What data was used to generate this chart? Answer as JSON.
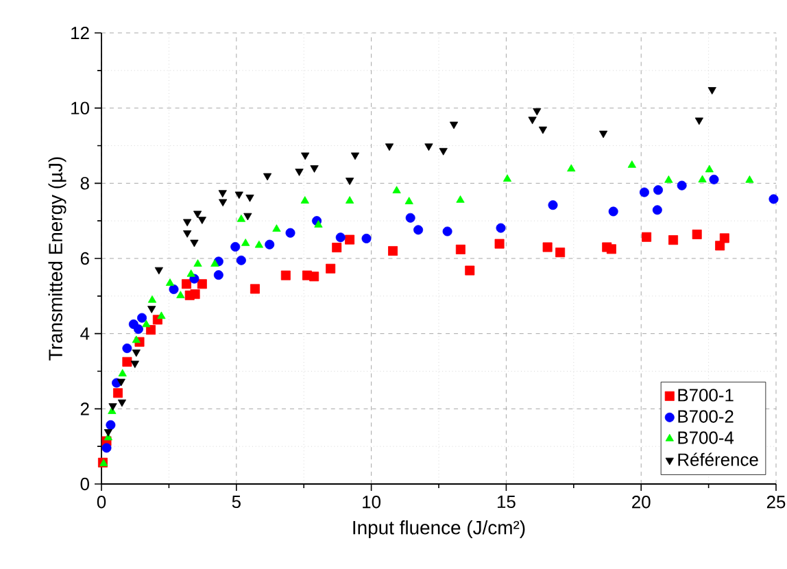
{
  "chart_data": {
    "type": "scatter",
    "xlabel": "Input fluence (J/cm²)",
    "ylabel": "Transmitted Energy (µJ)",
    "xlim": [
      0,
      25
    ],
    "ylim": [
      0,
      12
    ],
    "xticks": [
      0,
      5,
      10,
      15,
      20,
      25
    ],
    "yticks": [
      0,
      2,
      4,
      6,
      8,
      10,
      12
    ],
    "grid": true,
    "legend": "bottom right",
    "series": [
      {
        "name": "B700-1",
        "color": "#ff0000",
        "marker": "square",
        "x": [
          0.05,
          0.19,
          0.61,
          0.95,
          1.41,
          1.83,
          2.08,
          3.15,
          3.27,
          3.47,
          3.73,
          5.69,
          6.83,
          7.62,
          7.88,
          8.49,
          8.72,
          9.2,
          10.8,
          13.31,
          13.65,
          14.75,
          16.53,
          17.0,
          18.73,
          18.9,
          20.2,
          21.19,
          22.07,
          22.92,
          23.09
        ],
        "values": [
          0.57,
          1.14,
          2.42,
          3.25,
          3.78,
          4.1,
          4.37,
          5.32,
          5.02,
          5.05,
          5.32,
          5.19,
          5.55,
          5.55,
          5.52,
          5.73,
          6.29,
          6.5,
          6.2,
          6.24,
          5.68,
          6.39,
          6.3,
          6.16,
          6.3,
          6.25,
          6.57,
          6.49,
          6.64,
          6.34,
          6.54
        ]
      },
      {
        "name": "B700-2",
        "color": "#0000ff",
        "marker": "circle",
        "x": [
          0.19,
          0.34,
          0.56,
          0.95,
          1.19,
          1.37,
          1.5,
          2.68,
          3.44,
          4.34,
          4.34,
          4.96,
          5.18,
          6.23,
          7.0,
          7.98,
          8.86,
          9.82,
          11.45,
          11.74,
          12.82,
          14.8,
          16.73,
          18.97,
          20.12,
          20.63,
          20.6,
          21.51,
          22.7,
          24.91
        ],
        "values": [
          0.96,
          1.57,
          2.69,
          3.61,
          4.25,
          4.12,
          4.42,
          5.18,
          5.46,
          5.92,
          5.56,
          6.31,
          5.95,
          6.37,
          6.68,
          7.0,
          6.56,
          6.53,
          7.08,
          6.76,
          6.72,
          6.81,
          7.42,
          7.25,
          7.76,
          7.82,
          7.29,
          7.94,
          8.1,
          7.58
        ]
      },
      {
        "name": "B700-4",
        "color": "#00ff00",
        "marker": "triangle",
        "x": [
          0.08,
          0.25,
          0.39,
          0.78,
          1.29,
          1.66,
          1.88,
          2.22,
          2.54,
          2.93,
          3.32,
          3.57,
          4.2,
          5.18,
          5.34,
          5.84,
          6.49,
          7.54,
          8.04,
          9.2,
          10.94,
          11.4,
          13.3,
          15.04,
          17.41,
          19.66,
          21.02,
          22.27,
          22.53,
          24.02
        ],
        "values": [
          0.54,
          1.23,
          1.93,
          2.93,
          3.82,
          4.24,
          4.89,
          4.46,
          5.34,
          5.01,
          5.58,
          5.85,
          5.85,
          7.04,
          6.4,
          6.35,
          6.78,
          7.53,
          6.89,
          7.53,
          7.8,
          7.51,
          7.55,
          8.11,
          8.38,
          8.48,
          8.08,
          8.09,
          8.36,
          8.08
        ]
      },
      {
        "name": "Référence",
        "color": "#000000",
        "marker": "triangle-down",
        "x": [
          0.25,
          0.42,
          0.73,
          0.76,
          1.24,
          1.29,
          1.86,
          2.13,
          3.18,
          3.18,
          3.44,
          3.56,
          3.73,
          4.49,
          4.5,
          5.1,
          5.5,
          5.42,
          6.15,
          7.33,
          7.55,
          7.89,
          9.2,
          9.4,
          10.67,
          12.13,
          12.67,
          13.06,
          15.97,
          16.14,
          16.36,
          18.6,
          22.15,
          22.63
        ],
        "values": [
          1.39,
          2.08,
          2.73,
          2.18,
          3.21,
          3.51,
          4.67,
          5.7,
          6.98,
          6.68,
          6.43,
          7.2,
          7.04,
          7.75,
          7.51,
          7.71,
          7.63,
          7.14,
          8.2,
          8.32,
          8.75,
          8.41,
          8.08,
          8.75,
          8.99,
          8.99,
          8.87,
          9.57,
          9.7,
          9.93,
          9.44,
          9.33,
          9.68,
          10.49
        ]
      }
    ]
  }
}
